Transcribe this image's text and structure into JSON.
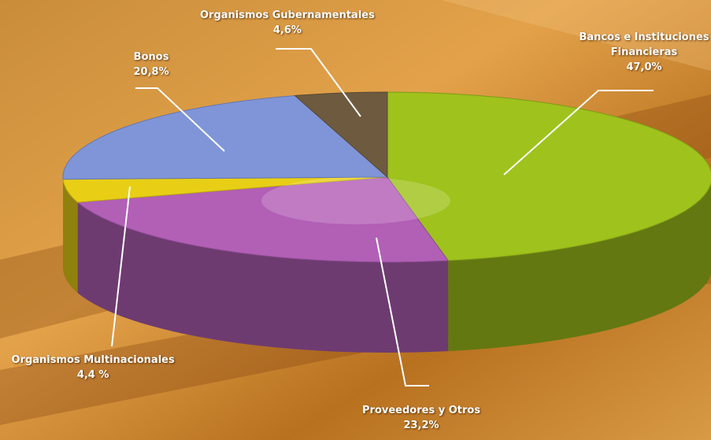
{
  "chart_data": {
    "type": "pie",
    "title": "",
    "slices": [
      {
        "name": "Bancos e Instituciones Financieras",
        "label_lines": [
          "Bancos e Instituciones",
          "Financieras"
        ],
        "value_label": "47,0%",
        "value": 47.0,
        "color": "#9fc21c"
      },
      {
        "name": "Proveedores y Otros",
        "label_lines": [
          "Proveedores y Otros"
        ],
        "value_label": "23,2%",
        "value": 23.2,
        "color": "#b25fb6"
      },
      {
        "name": "Organismos Multinacionales",
        "label_lines": [
          "Organismos Multinacionales"
        ],
        "value_label": "4,4 %",
        "value": 4.4,
        "color": "#e8cf16"
      },
      {
        "name": "Bonos",
        "label_lines": [
          "Bonos"
        ],
        "value_label": "20,8%",
        "value": 20.8,
        "color": "#7f95d8"
      },
      {
        "name": "Organismos Gubernamentales",
        "label_lines": [
          "Organismos Gubernamentales"
        ],
        "value_label": "4,6%",
        "value": 4.6,
        "color": "#6e5a3e"
      }
    ]
  },
  "colors": {
    "background": "#c8822a",
    "label_text": "#ffffff"
  }
}
